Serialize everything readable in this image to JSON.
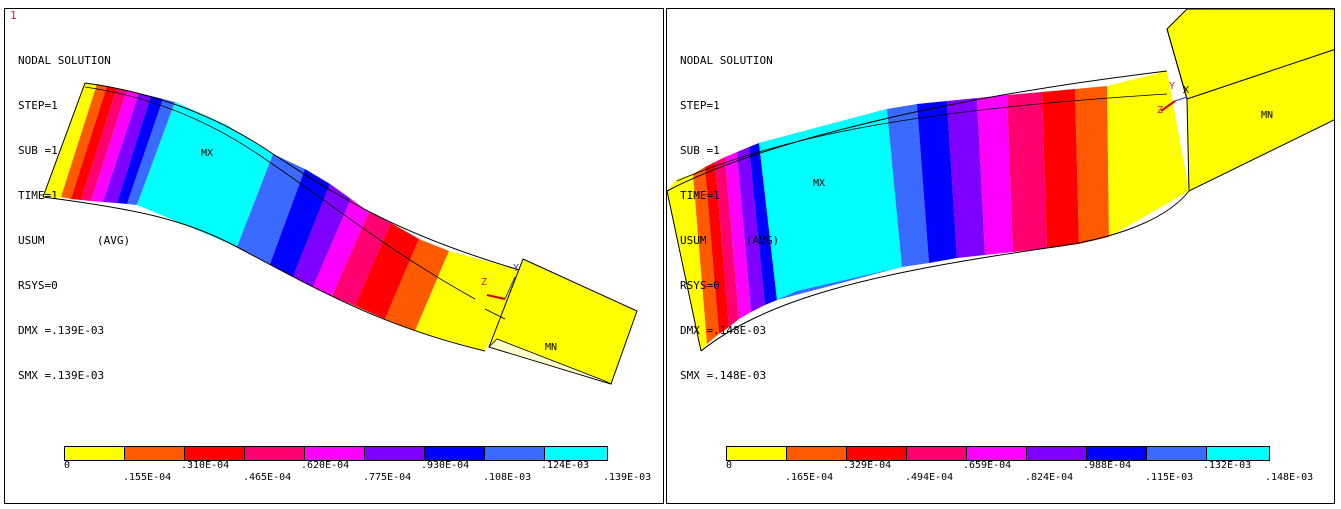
{
  "colors": [
    "#ffff00",
    "#ff5a00",
    "#ff0000",
    "#ff0070",
    "#ff00ff",
    "#8000ff",
    "#0000ff",
    "#3a6aff",
    "#00ffff"
  ],
  "left": {
    "window_number": "1",
    "title": "NODAL SOLUTION",
    "step": "STEP=1",
    "sub": "SUB =1",
    "time": "TIME=1",
    "usum": "USUM",
    "avg": "(AVG)",
    "rsys": "RSYS=0",
    "dmx": "DMX =.139E-03",
    "smx": "SMX =.139E-03",
    "mx_label": "MX",
    "mn_label": "MN",
    "axis_z": "Z",
    "axis_y": "Y",
    "legend_top": [
      "0",
      ".310E-04",
      ".620E-04",
      ".930E-04",
      ".124E-03"
    ],
    "legend_bottom": [
      ".155E-04",
      ".465E-04",
      ".775E-04",
      ".108E-03",
      ".139E-03"
    ]
  },
  "right": {
    "title": "NODAL SOLUTION",
    "step": "STEP=1",
    "sub": "SUB =1",
    "time": "TIME=1",
    "usum": "USUM",
    "avg": "(AVG)",
    "rsys": "RSYS=0",
    "dmx": "DMX =.148E-03",
    "smx": "SMX =.148E-03",
    "mx_label": "MX",
    "mn_label": "MN",
    "axis_y": "Y",
    "axis_x": "X",
    "axis_z": "Z",
    "legend_top": [
      "0",
      ".329E-04",
      ".659E-04",
      ".988E-04",
      ".132E-03"
    ],
    "legend_bottom": [
      ".165E-04",
      ".494E-04",
      ".824E-04",
      ".115E-03",
      ".148E-03"
    ]
  }
}
